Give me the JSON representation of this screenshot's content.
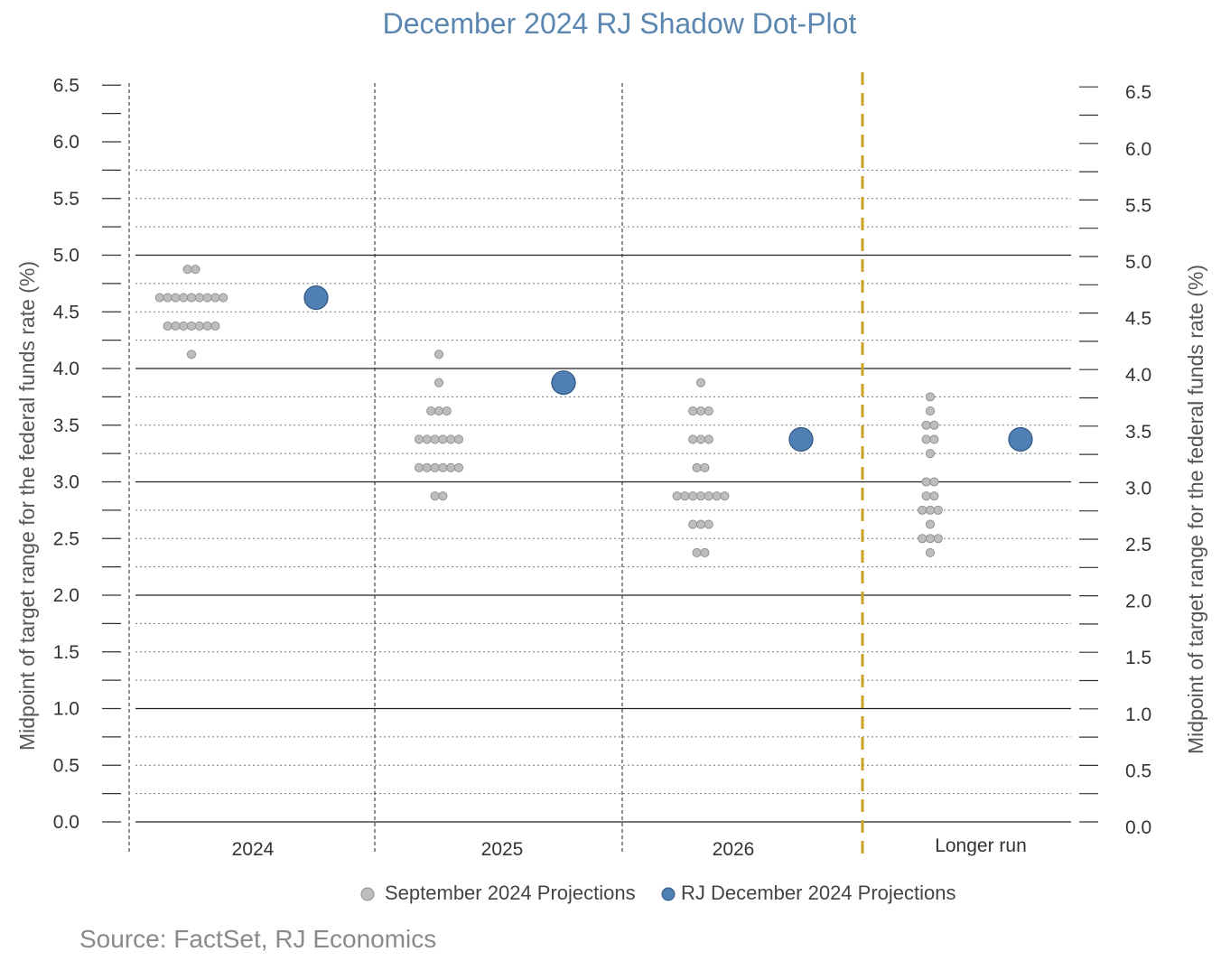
{
  "chart_data": {
    "type": "scatter",
    "title": "December 2024 RJ Shadow Dot-Plot",
    "ylabel_left": "Midpoint of target range for the federal funds rate (%)",
    "ylabel_right": "Midpoint of target range for the federal funds rate (%)",
    "ylim": [
      0,
      6.5
    ],
    "yticks": [
      "0.0",
      "0.5",
      "1.0",
      "1.5",
      "2.0",
      "2.5",
      "3.0",
      "3.5",
      "4.0",
      "4.5",
      "5.0",
      "5.5",
      "6.0",
      "6.5"
    ],
    "categories": [
      "2024",
      "2025",
      "2026",
      "Longer run"
    ],
    "grid": "solid at whole numbers, dotted at 0.25 steps",
    "legend_position": "bottom",
    "series": [
      {
        "name": "September 2024 Projections",
        "color": "#bdbdbd",
        "points": [
          {
            "category": "2024",
            "y": 4.875,
            "count": 2
          },
          {
            "category": "2024",
            "y": 4.625,
            "count": 9
          },
          {
            "category": "2024",
            "y": 4.375,
            "count": 7
          },
          {
            "category": "2024",
            "y": 4.125,
            "count": 1
          },
          {
            "category": "2025",
            "y": 4.125,
            "count": 1
          },
          {
            "category": "2025",
            "y": 3.875,
            "count": 1
          },
          {
            "category": "2025",
            "y": 3.625,
            "count": 3
          },
          {
            "category": "2025",
            "y": 3.375,
            "count": 6
          },
          {
            "category": "2025",
            "y": 3.125,
            "count": 6
          },
          {
            "category": "2025",
            "y": 2.875,
            "count": 2
          },
          {
            "category": "2026",
            "y": 3.875,
            "count": 1
          },
          {
            "category": "2026",
            "y": 3.625,
            "count": 3
          },
          {
            "category": "2026",
            "y": 3.375,
            "count": 3
          },
          {
            "category": "2026",
            "y": 3.125,
            "count": 2
          },
          {
            "category": "2026",
            "y": 2.875,
            "count": 7
          },
          {
            "category": "2026",
            "y": 2.625,
            "count": 3
          },
          {
            "category": "2026",
            "y": 2.375,
            "count": 2
          },
          {
            "category": "Longer run",
            "y": 3.75,
            "count": 1
          },
          {
            "category": "Longer run",
            "y": 3.625,
            "count": 1
          },
          {
            "category": "Longer run",
            "y": 3.5,
            "count": 2
          },
          {
            "category": "Longer run",
            "y": 3.375,
            "count": 2
          },
          {
            "category": "Longer run",
            "y": 3.25,
            "count": 1
          },
          {
            "category": "Longer run",
            "y": 3.0,
            "count": 2
          },
          {
            "category": "Longer run",
            "y": 2.875,
            "count": 2
          },
          {
            "category": "Longer run",
            "y": 2.75,
            "count": 3
          },
          {
            "category": "Longer run",
            "y": 2.625,
            "count": 1
          },
          {
            "category": "Longer run",
            "y": 2.5,
            "count": 3
          },
          {
            "category": "Longer run",
            "y": 2.375,
            "count": 1
          }
        ]
      },
      {
        "name": "RJ December 2024 Projections",
        "color": "#4f7fb3",
        "points": [
          {
            "category": "2024",
            "y": 4.625
          },
          {
            "category": "2025",
            "y": 3.875
          },
          {
            "category": "2026",
            "y": 3.375
          },
          {
            "category": "Longer run",
            "y": 3.375
          }
        ]
      }
    ],
    "source": "Source: FactSet, RJ Economics"
  }
}
